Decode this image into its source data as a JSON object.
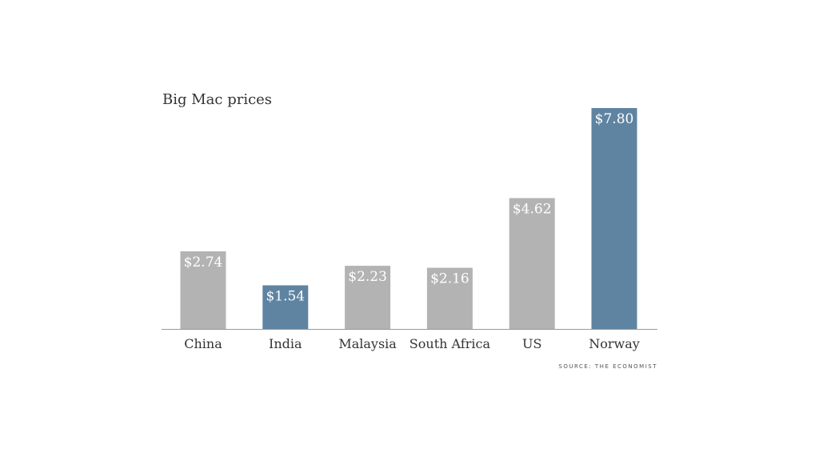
{
  "chart_data": {
    "type": "bar",
    "title": "Big Mac prices",
    "source": "SOURCE: THE ECONOMIST",
    "categories": [
      "China",
      "India",
      "Malaysia",
      "South Africa",
      "US",
      "Norway"
    ],
    "values": [
      2.74,
      1.54,
      2.23,
      2.16,
      4.62,
      7.8
    ],
    "value_labels": [
      "$2.74",
      "$1.54",
      "$2.23",
      "$2.16",
      "$4.62",
      "$7.80"
    ],
    "xlabel": "",
    "ylabel": "",
    "ylim": [
      0,
      7.8
    ],
    "grid": false,
    "legend": "none"
  },
  "colors": {
    "default_bar": "#b3b3b3",
    "highlight_bar": "#5f84a2",
    "baseline": "#999999"
  },
  "highlight_categories": [
    "India",
    "Norway"
  ]
}
